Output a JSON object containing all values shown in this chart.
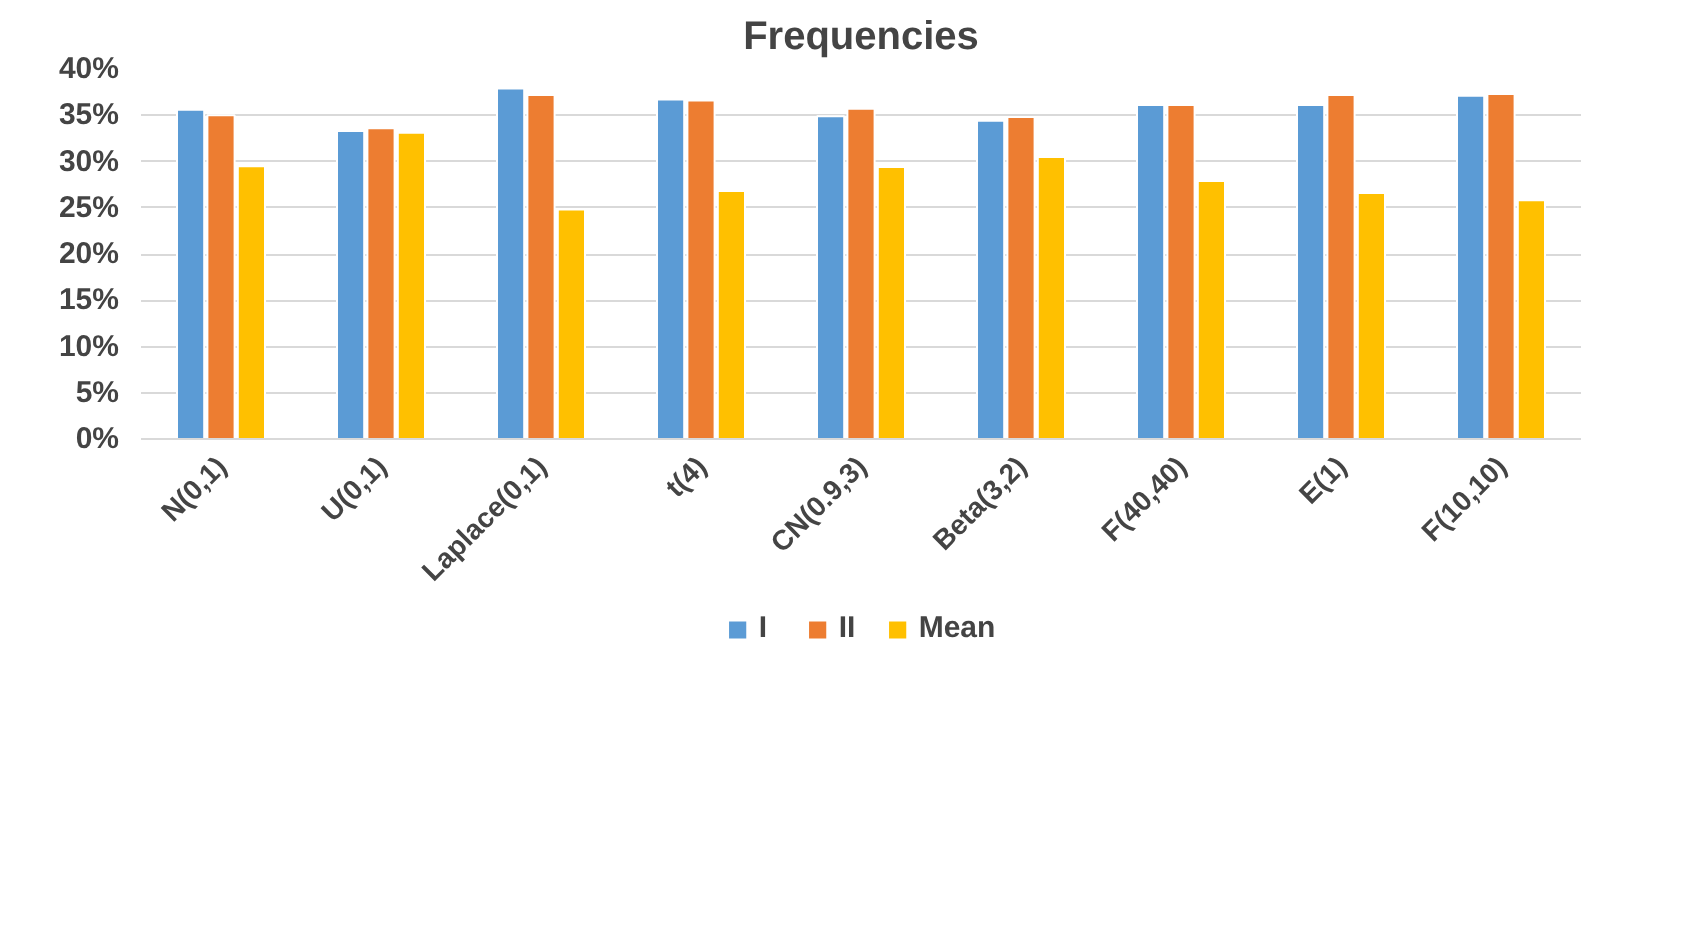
{
  "chart_data": {
    "type": "bar",
    "title": "Frequencies",
    "categories": [
      "N(0,1)",
      "U(0,1)",
      "Laplace(0,1)",
      "t(4)",
      "CN(0.9,3)",
      "Beta(3,2)",
      "F(40,40)",
      "E(1)",
      "F(10,10)"
    ],
    "series": [
      {
        "name": "I",
        "color": "#5b9bd5",
        "values": [
          35.6,
          33.3,
          37.9,
          36.7,
          34.9,
          34.4,
          36.1,
          36.1,
          37.1
        ]
      },
      {
        "name": "II",
        "color": "#ed7d31",
        "values": [
          35.0,
          33.6,
          37.2,
          36.6,
          35.7,
          34.8,
          36.1,
          37.2,
          37.3
        ]
      },
      {
        "name": "Mean",
        "color": "#ffc000",
        "values": [
          29.5,
          33.1,
          24.8,
          26.8,
          29.4,
          30.5,
          27.9,
          26.6,
          25.8
        ]
      }
    ],
    "ylim": [
      0,
      40
    ],
    "yticks": [
      {
        "value": 0,
        "label": "0%"
      },
      {
        "value": 5,
        "label": "5%"
      },
      {
        "value": 10,
        "label": "10%"
      },
      {
        "value": 15,
        "label": "15%"
      },
      {
        "value": 20,
        "label": "20%"
      },
      {
        "value": 25,
        "label": "25%"
      },
      {
        "value": 30,
        "label": "30%"
      },
      {
        "value": 35,
        "label": "35%"
      },
      {
        "value": 40,
        "label": "40%"
      }
    ],
    "grid": "y",
    "legend": "bottom"
  }
}
